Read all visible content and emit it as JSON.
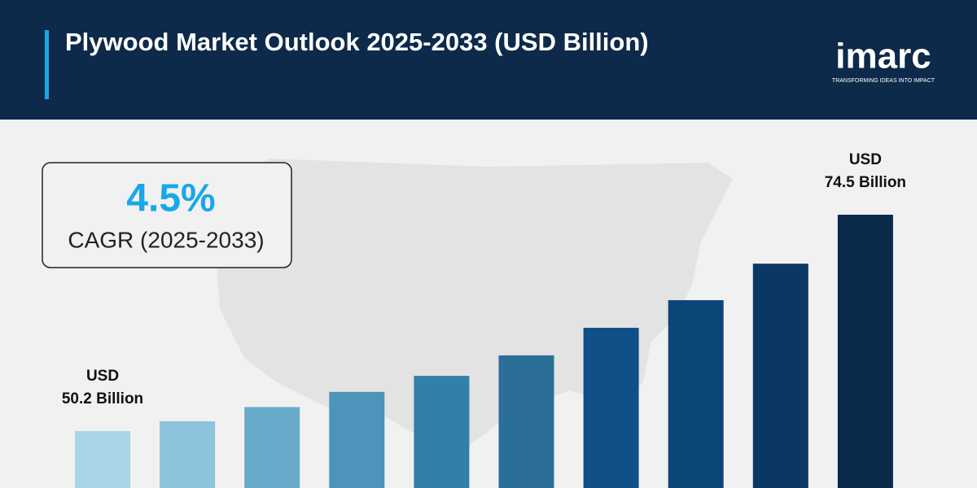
{
  "chart_data": {
    "type": "bar",
    "title": "Plywood Market Outlook 2025-2033 (USD Billion)",
    "brand": "imarc",
    "tagline": "TRANSFORMING IDEAS INTO IMPACT",
    "cagr": "4.5%",
    "cagr_label": "CAGR (2025-2033)",
    "categories": [
      null,
      null,
      null,
      null,
      null,
      null,
      null,
      null,
      null,
      null
    ],
    "values": [
      50.2,
      51.3,
      52.9,
      54.6,
      56.4,
      58.7,
      61.8,
      64.9,
      69.0,
      74.5
    ],
    "value_labels": [
      "USD 50.2 Billion",
      null,
      null,
      null,
      null,
      null,
      null,
      null,
      null,
      "USD 74.5 Billion"
    ],
    "colors": [
      "#a9d6e7",
      "#8ec4db",
      "#68aaca",
      "#4c94b9",
      "#3080a8",
      "#2b6e98",
      "#0f5087",
      "#0c4578",
      "#0b3764",
      "#0a2a4b"
    ]
  }
}
